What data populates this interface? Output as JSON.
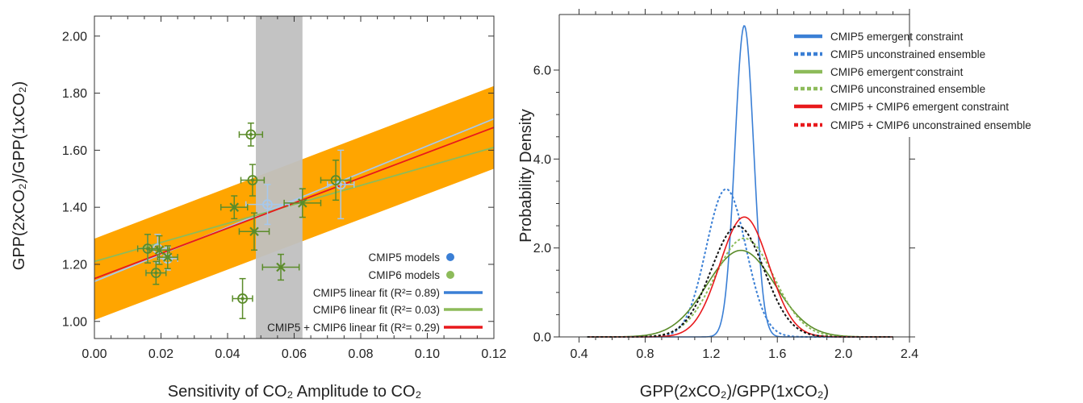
{
  "colors": {
    "cmip5": "#3a7fd5",
    "cmip5_light": "#a6c8ec",
    "cmip6": "#5b8c2a",
    "cmip6_light": "#8dbb5a",
    "combined": "#e8191c",
    "band": "#ffa500",
    "obs": "#c0c0c0",
    "black": "#111111"
  },
  "chart_data": [
    {
      "type": "scatter",
      "xlabel": "Sensitivity of CO₂ Amplitude to CO₂",
      "ylabel": "GPP(2xCO₂)/GPP(1xCO₂)",
      "xlim": [
        0.0,
        0.12
      ],
      "ylim": [
        0.94,
        2.07
      ],
      "xticks": [
        "0.00",
        "0.02",
        "0.04",
        "0.06",
        "0.08",
        "0.10",
        "0.12"
      ],
      "yticks": [
        "1.00",
        "1.20",
        "1.40",
        "1.60",
        "1.80",
        "2.00"
      ],
      "grid": false,
      "legend_position": "bottom-right",
      "observation_range_x": [
        0.0485,
        0.0625
      ],
      "confidence_band": {
        "x": [
          0.0,
          0.12
        ],
        "lower": [
          1.005,
          1.535
        ],
        "upper": [
          1.29,
          1.825
        ]
      },
      "series": [
        {
          "name": "CMIP5 models",
          "marker": "circle",
          "points": [
            {
              "x": 0.016,
              "y": 1.255,
              "xerr": 0.003,
              "yerr": 0.05
            },
            {
              "x": 0.019,
              "y": 1.255,
              "xerr": 0.003,
              "yerr": 0.05
            },
            {
              "x": 0.0185,
              "y": 1.17,
              "xerr": 0.003,
              "yerr": 0.04
            },
            {
              "x": 0.022,
              "y": 1.22,
              "xerr": 0.003,
              "yerr": 0.04
            },
            {
              "x": 0.052,
              "y": 1.41,
              "xerr": 0.0065,
              "yerr": 0.07
            },
            {
              "x": 0.074,
              "y": 1.48,
              "xerr": 0.004,
              "yerr": 0.12
            }
          ]
        },
        {
          "name": "CMIP6 models",
          "marker": "circle-or-cross",
          "points": [
            {
              "x": 0.016,
              "y": 1.255,
              "xerr": 0.003,
              "yerr": 0.05,
              "m": "o"
            },
            {
              "x": 0.0185,
              "y": 1.17,
              "xerr": 0.003,
              "yerr": 0.04,
              "m": "o"
            },
            {
              "x": 0.0195,
              "y": 1.25,
              "xerr": 0.003,
              "yerr": 0.05,
              "m": "x"
            },
            {
              "x": 0.022,
              "y": 1.225,
              "xerr": 0.003,
              "yerr": 0.04,
              "m": "x"
            },
            {
              "x": 0.042,
              "y": 1.4,
              "xerr": 0.004,
              "yerr": 0.04,
              "m": "x"
            },
            {
              "x": 0.047,
              "y": 1.655,
              "xerr": 0.0035,
              "yerr": 0.04,
              "m": "o"
            },
            {
              "x": 0.0475,
              "y": 1.495,
              "xerr": 0.0035,
              "yerr": 0.055,
              "m": "o"
            },
            {
              "x": 0.048,
              "y": 1.315,
              "xerr": 0.0045,
              "yerr": 0.065,
              "m": "x"
            },
            {
              "x": 0.0445,
              "y": 1.08,
              "xerr": 0.003,
              "yerr": 0.07,
              "m": "o"
            },
            {
              "x": 0.056,
              "y": 1.19,
              "xerr": 0.0055,
              "yerr": 0.045,
              "m": "x"
            },
            {
              "x": 0.0625,
              "y": 1.415,
              "xerr": 0.0055,
              "yerr": 0.05,
              "m": "x"
            },
            {
              "x": 0.0725,
              "y": 1.495,
              "xerr": 0.0045,
              "yerr": 0.07,
              "m": "o"
            }
          ]
        },
        {
          "name": "CMIP5 linear fit (R²= 0.89)",
          "type": "line",
          "x": [
            0.0,
            0.12
          ],
          "y": [
            1.14,
            1.71
          ]
        },
        {
          "name": "CMIP6 linear fit (R²= 0.03)",
          "type": "line",
          "x": [
            0.0,
            0.12
          ],
          "y": [
            1.21,
            1.61
          ]
        },
        {
          "name": "CMIP5 + CMIP6 linear fit (R²= 0.29)",
          "type": "line",
          "x": [
            0.0,
            0.12
          ],
          "y": [
            1.15,
            1.68
          ]
        }
      ],
      "legend": [
        {
          "text": "CMIP5 models",
          "swatch": "dot",
          "color": "cmip5"
        },
        {
          "text": "CMIP6 models",
          "swatch": "dot",
          "color": "cmip6_light"
        },
        {
          "text": "CMIP5 linear fit (R²= 0.89)",
          "swatch": "line",
          "color": "cmip5"
        },
        {
          "text": "CMIP6 linear fit (R²= 0.03)",
          "swatch": "line",
          "color": "cmip6_light"
        },
        {
          "text": "CMIP5 + CMIP6 linear fit (R²= 0.29)",
          "swatch": "line",
          "color": "combined"
        }
      ]
    },
    {
      "type": "line",
      "xlabel": "GPP(2xCO₂)/GPP(1xCO₂)",
      "ylabel": "Probability Density",
      "xlim": [
        0.28,
        2.4
      ],
      "ylim": [
        0.0,
        7.25
      ],
      "xticks": [
        "0.4",
        "0.8",
        "1.2",
        "1.6",
        "2.0",
        "2.4"
      ],
      "yticks": [
        "0.0",
        "2.0",
        "4.0",
        "6.0"
      ],
      "grid": false,
      "legend_position": "top-right",
      "series": [
        {
          "name": "CMIP5 emergent constraint",
          "dist": "normal",
          "mean": 1.4,
          "sd": 0.057,
          "color": "cmip5",
          "style": "solid"
        },
        {
          "name": "CMIP5 unconstrained ensemble",
          "dist": "normal",
          "mean": 1.29,
          "sd": 0.12,
          "color": "cmip5",
          "style": "dotted"
        },
        {
          "name": "CMIP6 emergent constraint",
          "dist": "normal",
          "mean": 1.38,
          "sd": 0.205,
          "color": "cmip6",
          "style": "solid"
        },
        {
          "name": "CMIP6 unconstrained ensemble",
          "dist": "normal",
          "mean": 1.4,
          "sd": 0.18,
          "color": "cmip6_light",
          "style": "dotted"
        },
        {
          "name": "CMIP5 + CMIP6 emergent constraint",
          "dist": "normal",
          "mean": 1.4,
          "sd": 0.148,
          "color": "combined",
          "style": "solid"
        },
        {
          "name": "CMIP5 + CMIP6 unconstrained ensemble",
          "dist": "normal",
          "mean": 1.36,
          "sd": 0.16,
          "color": "black",
          "style": "dotted"
        }
      ],
      "legend": [
        {
          "text": "CMIP5 emergent constraint",
          "color": "cmip5",
          "style": "solid"
        },
        {
          "text": "CMIP5 unconstrained ensemble",
          "color": "cmip5",
          "style": "dotted"
        },
        {
          "text": "CMIP6 emergent constraint",
          "color": "cmip6_light",
          "style": "solid"
        },
        {
          "text": "CMIP6 unconstrained ensemble",
          "color": "cmip6_light",
          "style": "dotted"
        },
        {
          "text": "CMIP5 + CMIP6 emergent constraint",
          "color": "combined",
          "style": "solid"
        },
        {
          "text": "CMIP5 + CMIP6 unconstrained ensemble",
          "color": "combined",
          "style": "dotted"
        }
      ]
    }
  ]
}
